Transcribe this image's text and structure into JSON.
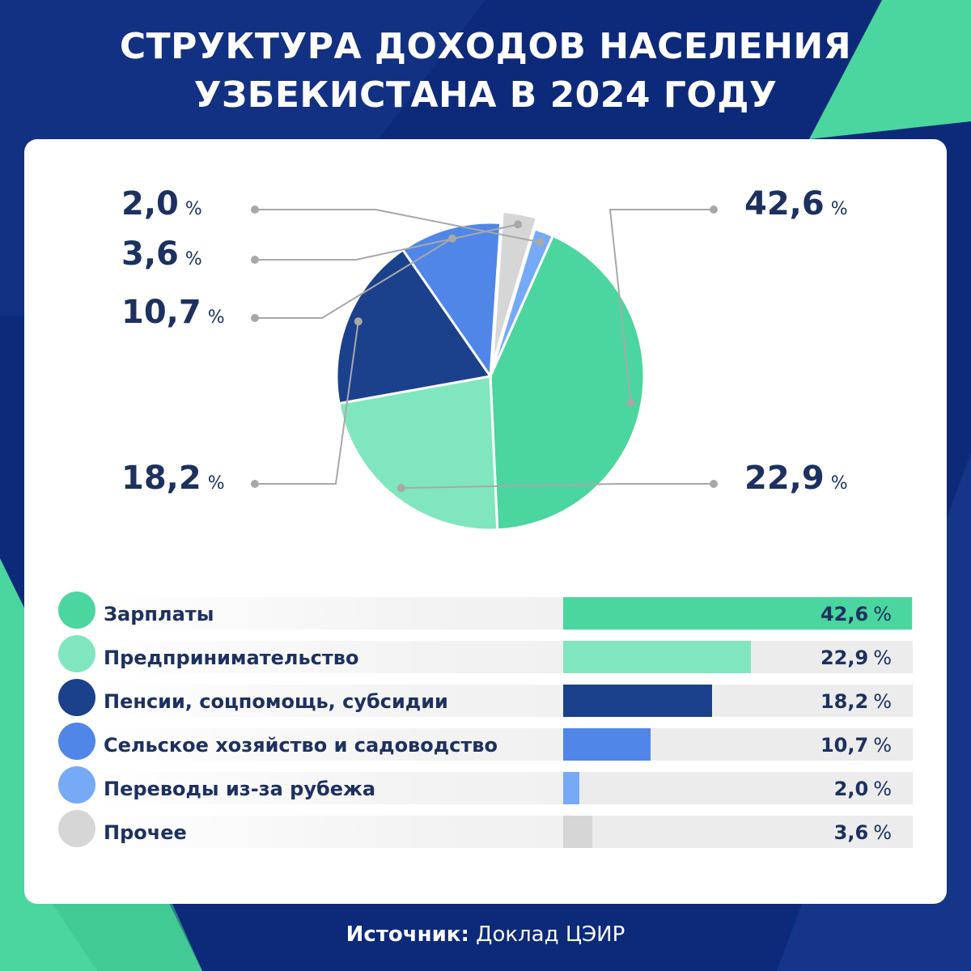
{
  "title_line1": "СТРУКТУРА ДОХОДОВ НАСЕЛЕНИЯ",
  "title_line2": "УЗБЕКИСТАНА В 2024 ГОДУ",
  "colors": {
    "background": "#0d2a7a",
    "accent_green": "#4ad69e",
    "card": "#ffffff",
    "text": "#1d3160"
  },
  "chart_data": {
    "type": "pie",
    "unit": "%",
    "categories": [
      "Зарплаты",
      "Предпринимательство",
      "Пенсии, соцпомощь, субсидии",
      "Сельское хозяйство и садоводство",
      "Переводы из-за рубежа",
      "Прочее"
    ],
    "values": [
      42.6,
      22.9,
      18.2,
      10.7,
      2.0,
      3.6
    ],
    "value_labels": [
      "42,6",
      "22,9",
      "18,2",
      "10,7",
      "2,0",
      "3,6"
    ],
    "colors": [
      "#4ad69e",
      "#80e6c0",
      "#1b418c",
      "#4f86e8",
      "#76aaf7",
      "#d6d6d6"
    ],
    "pie_order": [
      0,
      1,
      2,
      3,
      5,
      4
    ],
    "legend_position": "bottom"
  },
  "pct_sign": "%",
  "source_label": "Источник:",
  "source_value": "Доклад ЦЭИР"
}
